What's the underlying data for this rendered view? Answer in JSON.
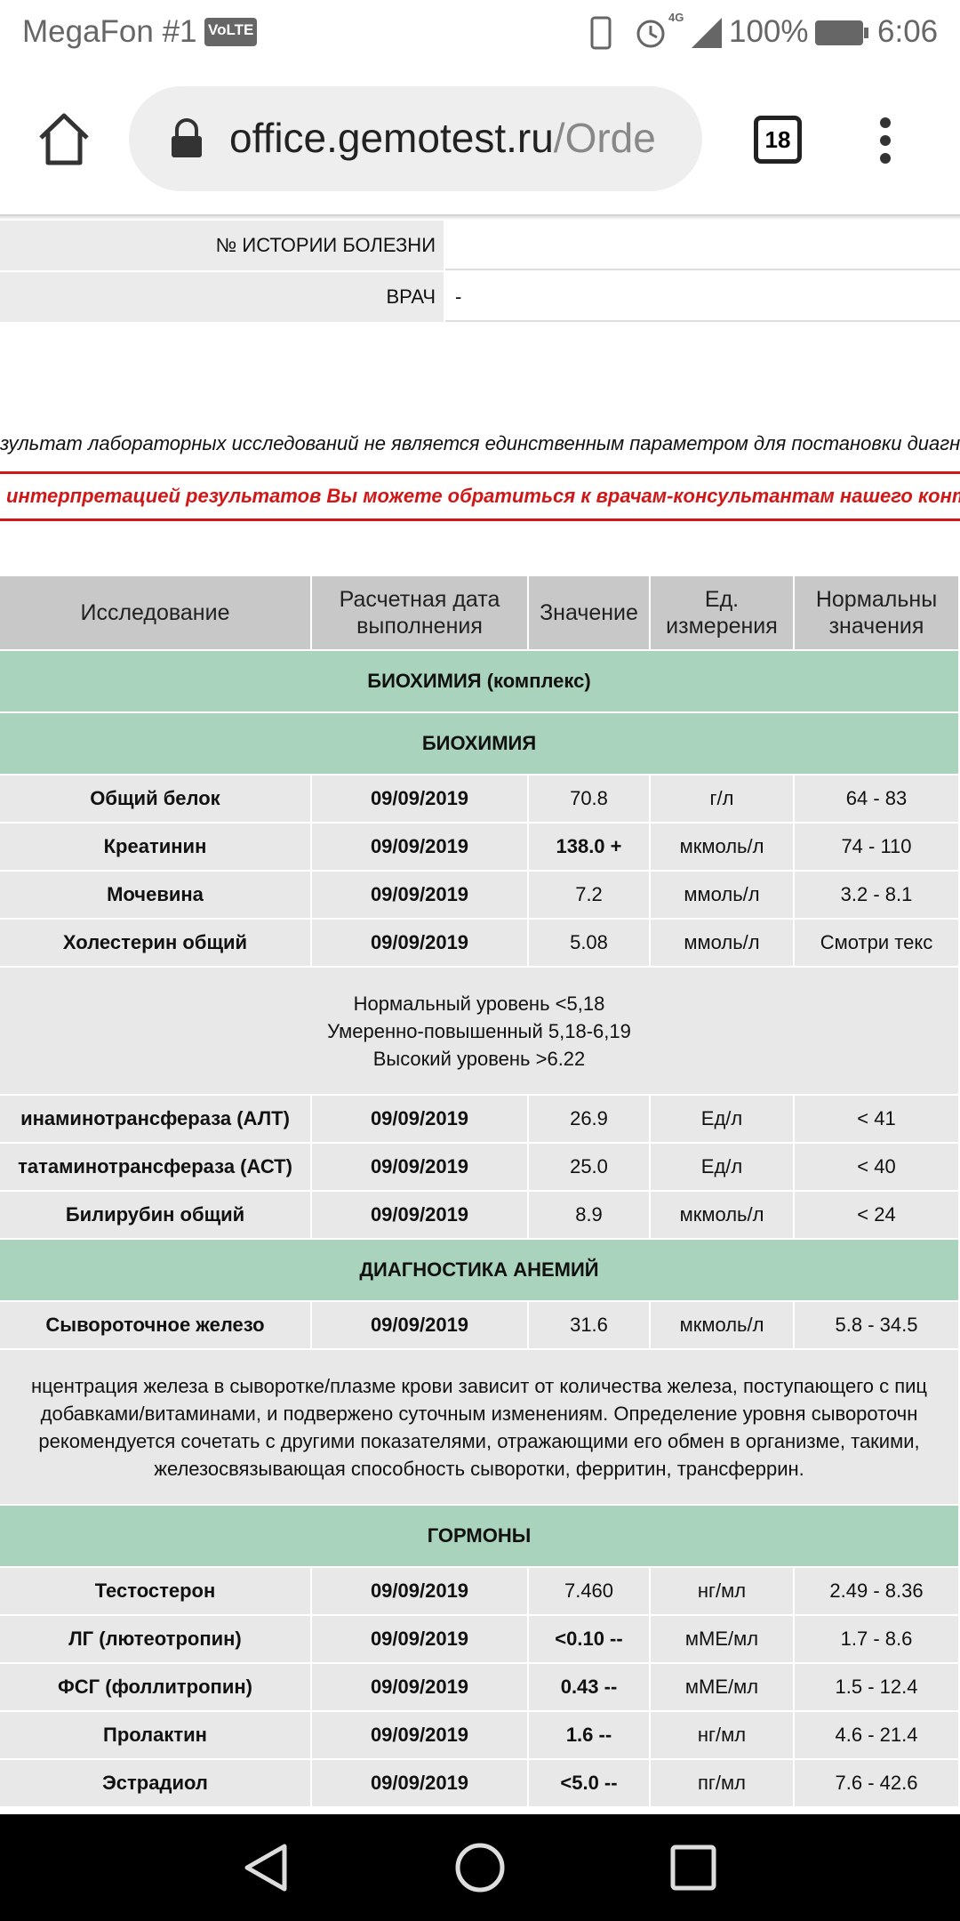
{
  "status_bar": {
    "carrier": "MegaFon #1",
    "volte": "VoLTE",
    "network": "4G",
    "battery": "100%",
    "time": "6:06"
  },
  "browser": {
    "url_host": "office.gemotest.ru",
    "url_path": "/Orde",
    "tabs": "18"
  },
  "patient_info": [
    {
      "label": "№ ИСТОРИИ БОЛЕЗНИ",
      "value": ""
    },
    {
      "label": "ВРАЧ",
      "value": "-"
    }
  ],
  "disclaimer": "зультат лабораторных исследований не является единственным параметром для постановки диагноз",
  "notice": "интерпретацией результатов Вы можете обратиться к врачам-консультантам нашего контакт-центр",
  "table": {
    "headers": [
      [
        "Исследование"
      ],
      [
        "Расчетная дата",
        "выполнения"
      ],
      [
        "Значение"
      ],
      [
        "Ед.",
        "измерения"
      ],
      [
        "Нормальны",
        "значения"
      ]
    ],
    "rows": [
      {
        "type": "section",
        "title": "БИОХИМИЯ (комплекс)"
      },
      {
        "type": "section",
        "title": "БИОХИМИЯ"
      },
      {
        "type": "data",
        "cells": [
          "Общий белок",
          "09/09/2019",
          "70.8",
          "г/л",
          "64 - 83"
        ],
        "flagged": false
      },
      {
        "type": "data",
        "cells": [
          "Креатинин",
          "09/09/2019",
          "138.0 +",
          "мкмоль/л",
          "74 - 110"
        ],
        "flagged": true
      },
      {
        "type": "data",
        "cells": [
          "Мочевина",
          "09/09/2019",
          "7.2",
          "ммоль/л",
          "3.2 - 8.1"
        ],
        "flagged": false
      },
      {
        "type": "data",
        "cells": [
          "Холестерин общий",
          "09/09/2019",
          "5.08",
          "ммоль/л",
          "Смотри текс"
        ],
        "flagged": false
      },
      {
        "type": "note",
        "lines": [
          "Нормальный уровень <5,18",
          "Умеренно-повышенный 5,18-6,19",
          "Высокий уровень >6.22"
        ]
      },
      {
        "type": "data",
        "cells": [
          "инаминотрансфераза (АЛТ)",
          "09/09/2019",
          "26.9",
          "Ед/л",
          "< 41"
        ],
        "flagged": false
      },
      {
        "type": "data",
        "cells": [
          "татаминотрансфераза (АСТ)",
          "09/09/2019",
          "25.0",
          "Ед/л",
          "< 40"
        ],
        "flagged": false
      },
      {
        "type": "data",
        "cells": [
          "Билирубин общий",
          "09/09/2019",
          "8.9",
          "мкмоль/л",
          "< 24"
        ],
        "flagged": false
      },
      {
        "type": "section",
        "title": "ДИАГНОСТИКА АНЕМИЙ"
      },
      {
        "type": "data",
        "cells": [
          "Сывороточное железо",
          "09/09/2019",
          "31.6",
          "мкмоль/л",
          "5.8 - 34.5"
        ],
        "flagged": false
      },
      {
        "type": "note",
        "lines": [
          "нцентрация железа в сыворотке/плазме крови зависит от количества железа, поступающего с пиц",
          "добавками/витаминами, и подвержено суточным изменениям. Определение уровня сывороточн",
          "рекомендуется сочетать с другими показателями, отражающими его обмен в организме, такими,",
          "железосвязывающая способность сыворотки, ферритин, трансферрин."
        ]
      },
      {
        "type": "section",
        "title": "ГОРМОНЫ"
      },
      {
        "type": "data",
        "cells": [
          "Тестостерон",
          "09/09/2019",
          "7.460",
          "нг/мл",
          "2.49 - 8.36"
        ],
        "flagged": false
      },
      {
        "type": "data",
        "cells": [
          "ЛГ (лютеотропин)",
          "09/09/2019",
          "<0.10 --",
          "мМЕ/мл",
          "1.7 - 8.6"
        ],
        "flagged": true
      },
      {
        "type": "data",
        "cells": [
          "ФСГ (фоллитропин)",
          "09/09/2019",
          "0.43 --",
          "мМЕ/мл",
          "1.5 - 12.4"
        ],
        "flagged": true
      },
      {
        "type": "data",
        "cells": [
          "Пролактин",
          "09/09/2019",
          "1.6 --",
          "нг/мл",
          "4.6 - 21.4"
        ],
        "flagged": true
      },
      {
        "type": "data",
        "cells": [
          "Эстрадиол",
          "09/09/2019",
          "<5.0 --",
          "пг/мл",
          "7.6 - 42.6"
        ],
        "flagged": true
      }
    ]
  }
}
